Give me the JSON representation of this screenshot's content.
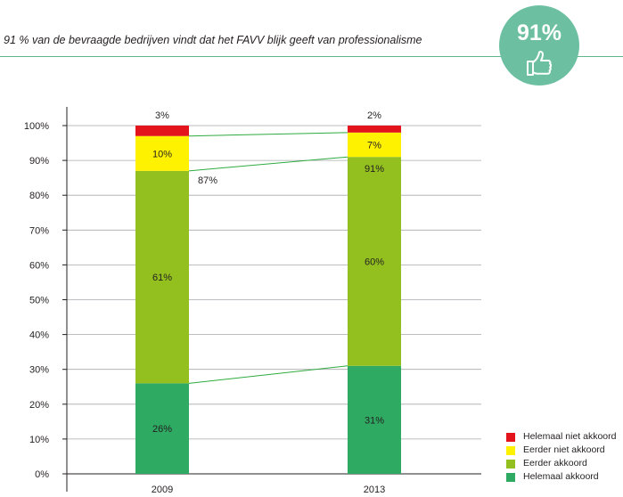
{
  "headline": "91 % van de bevraagde bedrijven vindt dat het FAVV blijk geeft van professionalisme",
  "badge": {
    "value": "91%",
    "icon": "thumbs-up-icon",
    "color": "#6cc0a1"
  },
  "chart_data": {
    "type": "bar",
    "stacked": true,
    "categories": [
      "2009",
      "2013"
    ],
    "y_ticks": [
      "0%",
      "10%",
      "20%",
      "30%",
      "40%",
      "50%",
      "60%",
      "70%",
      "80%",
      "90%",
      "100%"
    ],
    "ylim": [
      0,
      100
    ],
    "grid": true,
    "legend_position": "bottom-right",
    "series": [
      {
        "name": "Helemaal akkoord",
        "color": "#2eaa62",
        "values": [
          26,
          31
        ],
        "labels": [
          "26%",
          "31%"
        ]
      },
      {
        "name": "Eerder akkoord",
        "color": "#93c01f",
        "values": [
          61,
          60
        ],
        "labels": [
          "61%",
          "60%"
        ]
      },
      {
        "name": "Eerder niet akkoord",
        "color": "#fff200",
        "values": [
          10,
          7
        ],
        "labels": [
          "10%",
          "7%"
        ]
      },
      {
        "name": "Helemaal niet akkoord",
        "color": "#e3141b",
        "values": [
          3,
          2
        ],
        "labels": [
          "3%",
          "2%"
        ]
      }
    ],
    "cumulative_labels": [
      "87%",
      "91%"
    ],
    "connector_color": "#2eaa3f"
  },
  "legend_order": [
    3,
    2,
    1,
    0
  ]
}
